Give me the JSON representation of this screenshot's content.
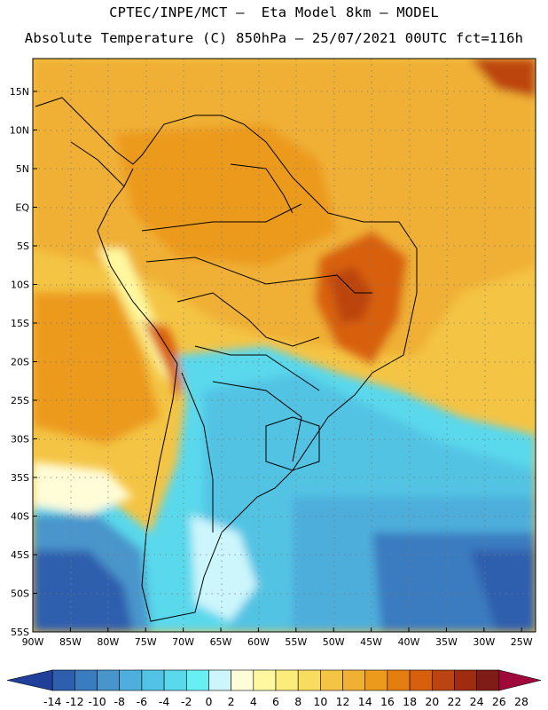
{
  "header": {
    "line1": "CPTEC/INPE/MCT –  Eta Model 8km – MODEL",
    "line2": "Absolute Temperature (C) 850hPa – 25/07/2021 00UTC fct=116h"
  },
  "map": {
    "lat_labels": [
      "15N",
      "10N",
      "5N",
      "EQ",
      "5S",
      "10S",
      "15S",
      "20S",
      "25S",
      "30S",
      "35S",
      "40S",
      "45S",
      "50S",
      "55S"
    ],
    "lon_labels": [
      "90W",
      "85W",
      "80W",
      "75W",
      "70W",
      "65W",
      "60W",
      "55W",
      "50W",
      "45W",
      "40W",
      "35W",
      "30W",
      "25W"
    ]
  },
  "colorbar": {
    "colors": [
      "#1f3f9a",
      "#2e5fae",
      "#3a7cc0",
      "#4895cc",
      "#4eaedc",
      "#52c3e4",
      "#5ad8ec",
      "#66f0f4",
      "#ccf6fc",
      "#fffcd8",
      "#fff8a0",
      "#fcec7c",
      "#f8dc60",
      "#f4c444",
      "#f0b034",
      "#ec9a1c",
      "#e47e10",
      "#d8600c",
      "#bc4410",
      "#a02c10",
      "#801c18",
      "#a0083c"
    ],
    "labels": [
      "-14",
      "-12",
      "-10",
      "-8",
      "-6",
      "-4",
      "-2",
      "0",
      "2",
      "4",
      "6",
      "8",
      "10",
      "12",
      "14",
      "16",
      "18",
      "20",
      "22",
      "24",
      "26",
      "28"
    ]
  }
}
